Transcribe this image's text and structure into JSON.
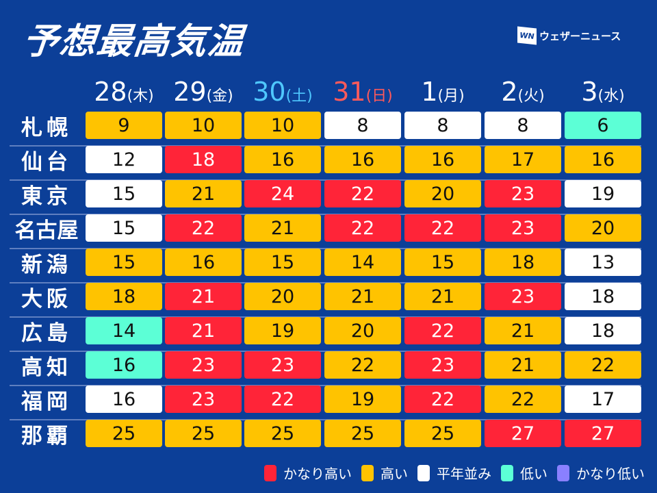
{
  "title": "予想最高気温",
  "brand": {
    "mark": "WN",
    "name": "ウェザーニュース"
  },
  "colors": {
    "very_high": "#ff2438",
    "high": "#ffc300",
    "normal": "#ffffff",
    "low": "#5cffd6",
    "very_low": "#8a80ff",
    "background": "#0c3f98",
    "saturday": "#4fc8ff",
    "sunday": "#ff5a5a"
  },
  "days": [
    {
      "date": "28",
      "weekday": "(木)",
      "type": "weekday"
    },
    {
      "date": "29",
      "weekday": "(金)",
      "type": "weekday"
    },
    {
      "date": "30",
      "weekday": "(土)",
      "type": "saturday"
    },
    {
      "date": "31",
      "weekday": "(日)",
      "type": "sunday"
    },
    {
      "date": "1",
      "weekday": "(月)",
      "type": "weekday"
    },
    {
      "date": "2",
      "weekday": "(火)",
      "type": "weekday"
    },
    {
      "date": "3",
      "weekday": "(水)",
      "type": "weekday"
    }
  ],
  "rows": [
    {
      "city": "札幌",
      "temps": [
        "9",
        "10",
        "10",
        "8",
        "8",
        "8",
        "6"
      ],
      "levels": [
        "high",
        "high",
        "high",
        "normal",
        "normal",
        "normal",
        "low"
      ]
    },
    {
      "city": "仙台",
      "temps": [
        "12",
        "18",
        "16",
        "16",
        "16",
        "17",
        "16"
      ],
      "levels": [
        "normal",
        "very_high",
        "high",
        "high",
        "high",
        "high",
        "high"
      ]
    },
    {
      "city": "東京",
      "temps": [
        "15",
        "21",
        "24",
        "22",
        "20",
        "23",
        "19"
      ],
      "levels": [
        "normal",
        "high",
        "very_high",
        "very_high",
        "high",
        "very_high",
        "normal"
      ]
    },
    {
      "city": "名古屋",
      "temps": [
        "15",
        "22",
        "21",
        "22",
        "22",
        "23",
        "20"
      ],
      "levels": [
        "normal",
        "very_high",
        "high",
        "very_high",
        "very_high",
        "very_high",
        "high"
      ]
    },
    {
      "city": "新潟",
      "temps": [
        "15",
        "16",
        "15",
        "14",
        "15",
        "18",
        "13"
      ],
      "levels": [
        "high",
        "high",
        "high",
        "high",
        "high",
        "high",
        "normal"
      ]
    },
    {
      "city": "大阪",
      "temps": [
        "18",
        "21",
        "20",
        "21",
        "21",
        "23",
        "18"
      ],
      "levels": [
        "high",
        "very_high",
        "high",
        "high",
        "high",
        "very_high",
        "normal"
      ]
    },
    {
      "city": "広島",
      "temps": [
        "14",
        "21",
        "19",
        "20",
        "22",
        "21",
        "18"
      ],
      "levels": [
        "low",
        "very_high",
        "high",
        "high",
        "very_high",
        "high",
        "normal"
      ]
    },
    {
      "city": "高知",
      "temps": [
        "16",
        "23",
        "23",
        "22",
        "23",
        "21",
        "22"
      ],
      "levels": [
        "low",
        "very_high",
        "very_high",
        "high",
        "very_high",
        "high",
        "high"
      ]
    },
    {
      "city": "福岡",
      "temps": [
        "16",
        "23",
        "22",
        "19",
        "22",
        "22",
        "17"
      ],
      "levels": [
        "normal",
        "very_high",
        "very_high",
        "high",
        "very_high",
        "high",
        "normal"
      ]
    },
    {
      "city": "那覇",
      "temps": [
        "25",
        "25",
        "25",
        "25",
        "25",
        "27",
        "27"
      ],
      "levels": [
        "high",
        "high",
        "high",
        "high",
        "high",
        "very_high",
        "very_high"
      ]
    }
  ],
  "legend": [
    {
      "key": "very_high",
      "label": "かなり高い"
    },
    {
      "key": "high",
      "label": "高い"
    },
    {
      "key": "normal",
      "label": "平年並み"
    },
    {
      "key": "low",
      "label": "低い"
    },
    {
      "key": "very_low",
      "label": "かなり低い"
    }
  ]
}
